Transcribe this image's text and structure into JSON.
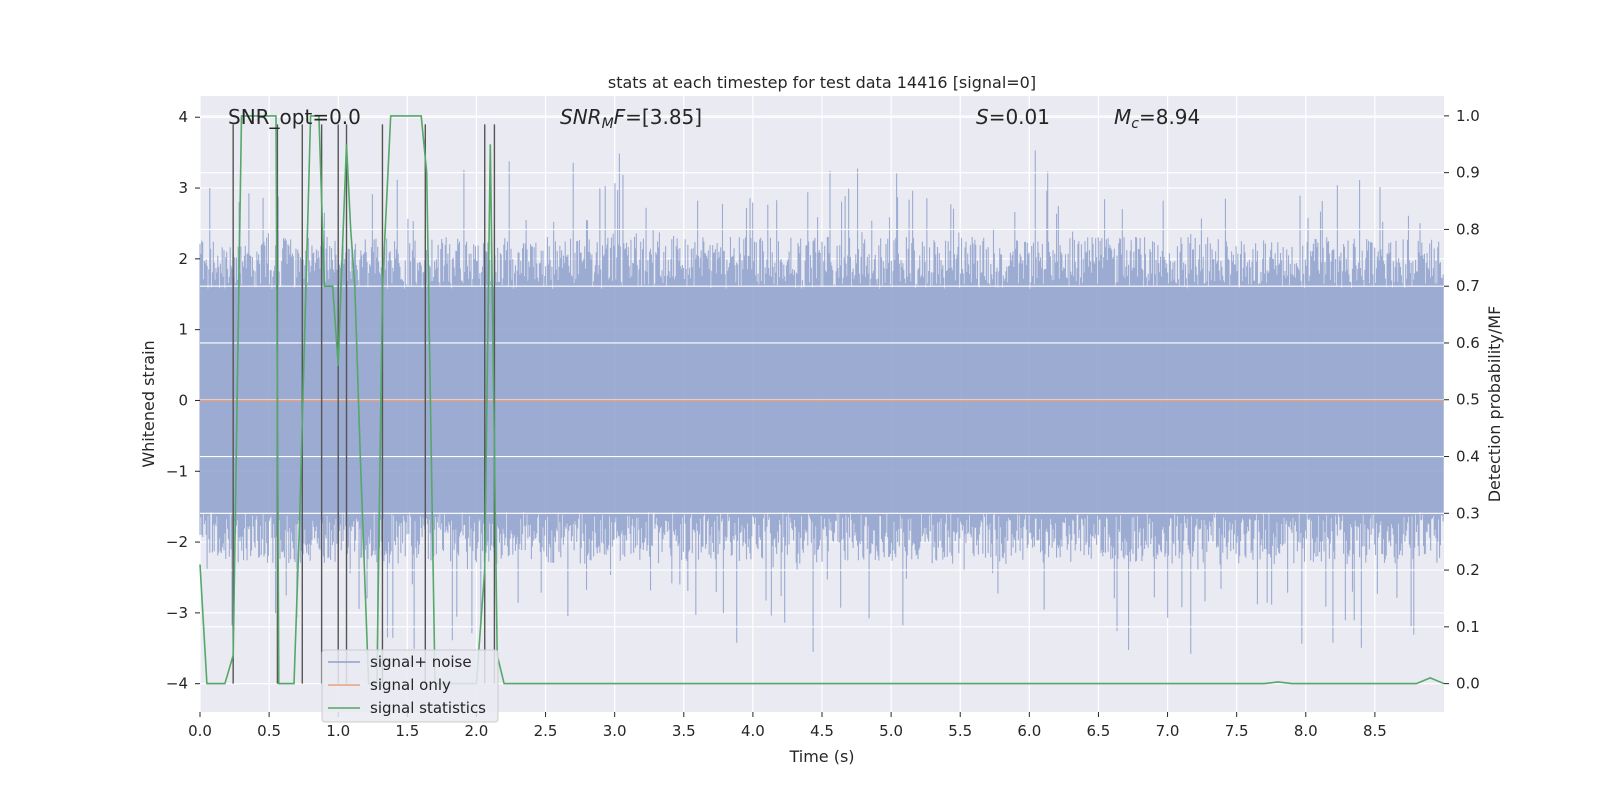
{
  "chart_data": {
    "type": "line",
    "title": "stats at each timestep for test data 14416 [signal=0]",
    "xlabel": "Time (s)",
    "ylabel_left": "Whitened strain",
    "ylabel_right": "Detection probability/MF",
    "xlim": [
      0.0,
      9.0
    ],
    "ylim_left": [
      -4.4,
      4.3
    ],
    "ylim_right": [
      -0.05,
      1.035
    ],
    "xticks": [
      "0.0",
      "0.5",
      "1.0",
      "1.5",
      "2.0",
      "2.5",
      "3.0",
      "3.5",
      "4.0",
      "4.5",
      "5.0",
      "5.5",
      "6.0",
      "6.5",
      "7.0",
      "7.5",
      "8.0",
      "8.5"
    ],
    "xtick_values": [
      0.0,
      0.5,
      1.0,
      1.5,
      2.0,
      2.5,
      3.0,
      3.5,
      4.0,
      4.5,
      5.0,
      5.5,
      6.0,
      6.5,
      7.0,
      7.5,
      8.0,
      8.5
    ],
    "yticks_left": [
      "−4",
      "−3",
      "−2",
      "−1",
      "0",
      "1",
      "2",
      "3",
      "4"
    ],
    "ytick_values_left": [
      -4,
      -3,
      -2,
      -1,
      0,
      1,
      2,
      3,
      4
    ],
    "yticks_right": [
      "0.0",
      "0.1",
      "0.2",
      "0.3",
      "0.4",
      "0.5",
      "0.6",
      "0.7",
      "0.8",
      "0.9",
      "1.0"
    ],
    "ytick_values_right": [
      0.0,
      0.1,
      0.2,
      0.3,
      0.4,
      0.5,
      0.6,
      0.7,
      0.8,
      0.9,
      1.0
    ],
    "annotations": {
      "snr_opt": "SNR_opt=0.0",
      "snr_mf_prefix": "SNR",
      "snr_mf_sub": "M",
      "snr_mf_italic": "F",
      "snr_mf_value": "=[3.85]",
      "s_italic": "S",
      "s_value": "=0.01",
      "mc_italic": "M",
      "mc_sub": "c",
      "mc_value": "=8.94"
    },
    "legend": {
      "placement": "lower-left",
      "entries": [
        {
          "label": "signal+ noise",
          "color": "#8da0cb"
        },
        {
          "label": "signal only",
          "color": "#e8a07e"
        },
        {
          "label": "signal statistics",
          "color": "#55a868"
        }
      ]
    },
    "series": [
      {
        "name": "signal+ noise",
        "axis": "left",
        "color": "#8da0cb",
        "description": "noisy whitened strain, envelope approx",
        "typical_lower": -2.1,
        "typical_upper": 2.1,
        "peak_lower": -4.0,
        "peak_upper": 4.0
      },
      {
        "name": "signal only",
        "axis": "left",
        "color": "#e8a07e",
        "x": [
          0.0,
          9.0
        ],
        "y": [
          0.0,
          0.0
        ]
      },
      {
        "name": "signal statistics",
        "axis": "right",
        "color": "#55a868",
        "x": [
          0.0,
          0.05,
          0.18,
          0.24,
          0.3,
          0.55,
          0.57,
          0.62,
          0.68,
          0.72,
          0.8,
          0.86,
          0.9,
          0.96,
          1.0,
          1.02,
          1.06,
          1.09,
          1.12,
          1.16,
          1.22,
          1.28,
          1.32,
          1.38,
          1.6,
          1.64,
          1.7,
          1.8,
          2.0,
          2.06,
          2.1,
          2.15,
          2.2,
          2.25,
          2.5,
          3.0,
          4.0,
          5.0,
          6.0,
          7.0,
          7.7,
          7.8,
          7.9,
          8.0,
          8.5,
          8.8,
          8.9,
          9.0
        ],
        "y": [
          0.21,
          0.0,
          0.0,
          0.05,
          1.0,
          1.0,
          0.0,
          0.0,
          0.0,
          0.28,
          1.0,
          1.0,
          0.7,
          0.7,
          0.56,
          0.7,
          0.95,
          0.8,
          0.7,
          0.4,
          0.0,
          0.0,
          0.7,
          1.0,
          1.0,
          0.9,
          0.0,
          0.0,
          0.0,
          0.2,
          0.95,
          0.05,
          0.0,
          0.0,
          0.0,
          0.0,
          0.0,
          0.0,
          0.0,
          0.0,
          0.0,
          0.003,
          0.0,
          0.0,
          0.0,
          0.0,
          0.01,
          0.0
        ]
      }
    ],
    "vertical_markers": {
      "color": "#555555",
      "x": [
        0.24,
        0.56,
        0.74,
        0.88,
        1.0,
        1.06,
        1.32,
        1.63,
        2.06,
        2.13
      ]
    }
  }
}
